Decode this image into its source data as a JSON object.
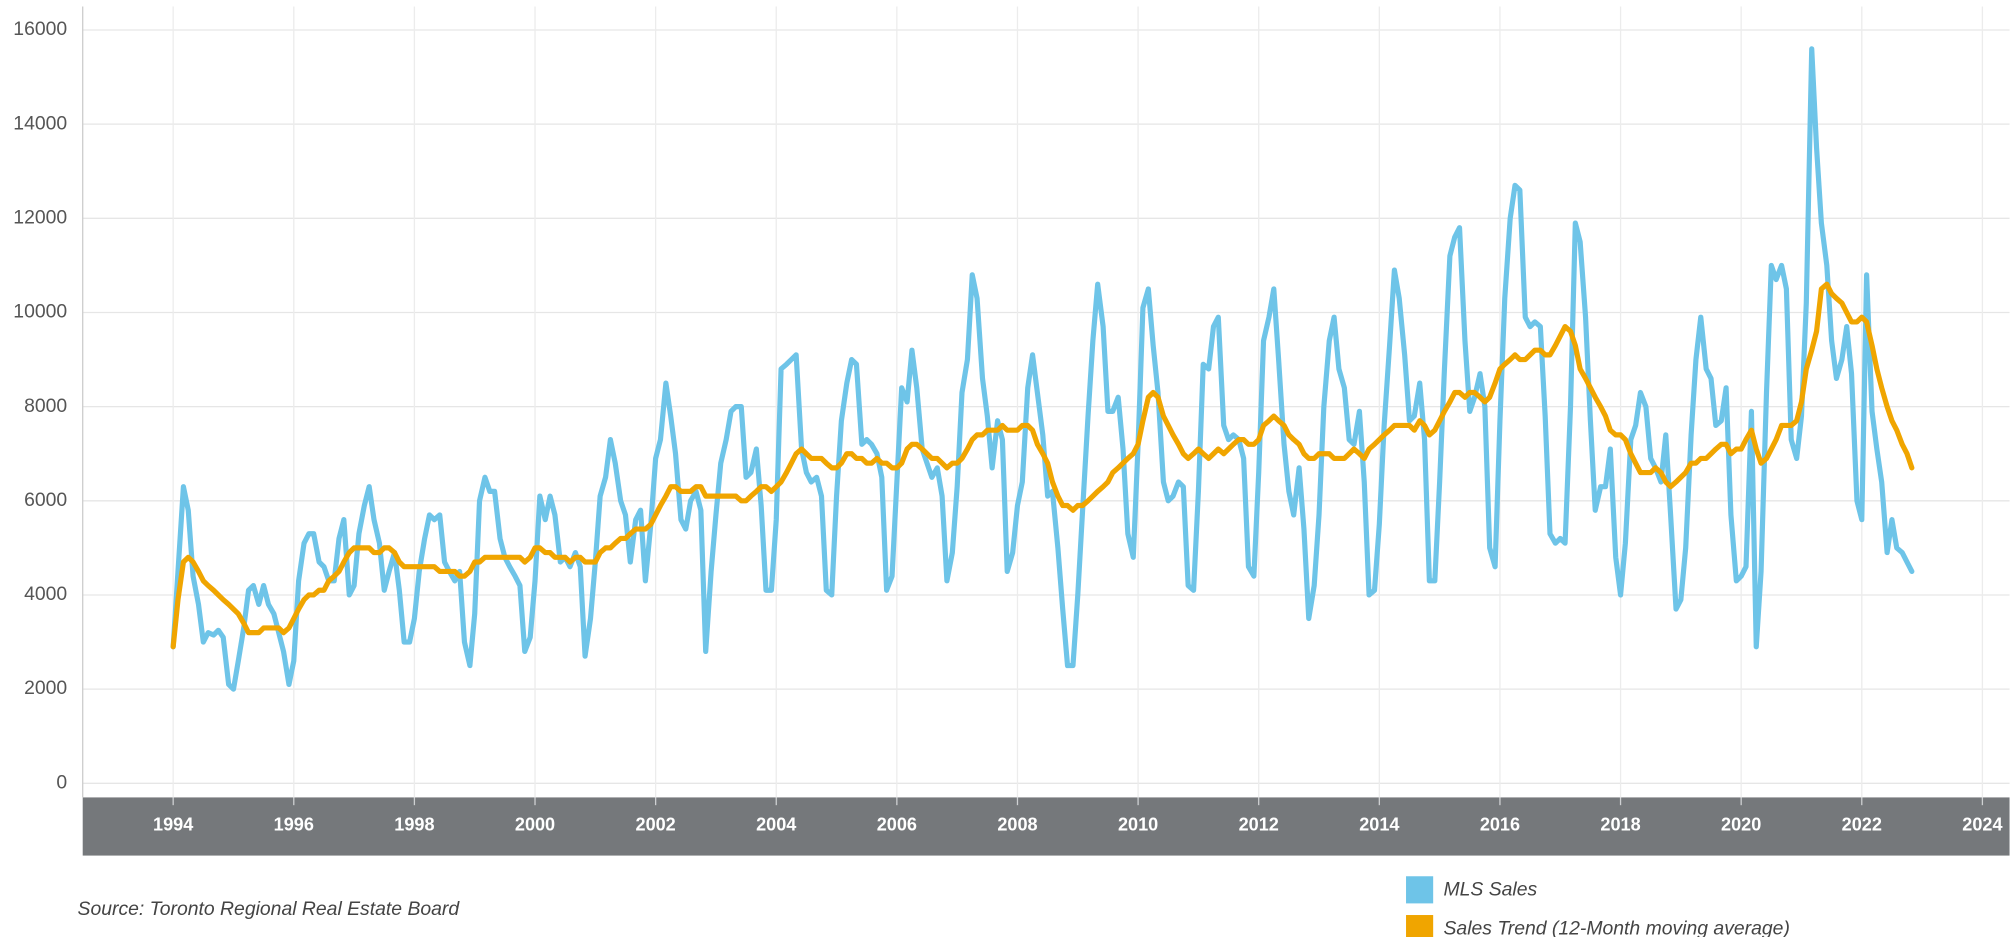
{
  "chart_data": {
    "type": "line",
    "source": "Source: Toronto Regional Real Estate Board",
    "grid": true,
    "xlim": [
      1992.5,
      2024.45
    ],
    "xticks": [
      1994,
      1996,
      1998,
      2000,
      2002,
      2004,
      2006,
      2008,
      2010,
      2012,
      2014,
      2016,
      2018,
      2020,
      2022,
      2024
    ],
    "ylim": [
      -300,
      16500
    ],
    "yticks": [
      0,
      2000,
      4000,
      6000,
      8000,
      10000,
      12000,
      14000,
      16000
    ],
    "x": [
      1994.0,
      1994.08,
      1994.17,
      1994.25,
      1994.33,
      1994.42,
      1994.5,
      1994.58,
      1994.67,
      1994.75,
      1994.83,
      1994.92,
      1995.0,
      1995.08,
      1995.17,
      1995.25,
      1995.33,
      1995.42,
      1995.5,
      1995.58,
      1995.67,
      1995.75,
      1995.83,
      1995.92,
      1996.0,
      1996.08,
      1996.17,
      1996.25,
      1996.33,
      1996.42,
      1996.5,
      1996.58,
      1996.67,
      1996.75,
      1996.83,
      1996.92,
      1997.0,
      1997.08,
      1997.17,
      1997.25,
      1997.33,
      1997.42,
      1997.5,
      1997.58,
      1997.67,
      1997.75,
      1997.83,
      1997.92,
      1998.0,
      1998.08,
      1998.17,
      1998.25,
      1998.33,
      1998.42,
      1998.5,
      1998.58,
      1998.67,
      1998.75,
      1998.83,
      1998.92,
      1999.0,
      1999.08,
      1999.17,
      1999.25,
      1999.33,
      1999.42,
      1999.5,
      1999.58,
      1999.67,
      1999.75,
      1999.83,
      1999.92,
      2000.0,
      2000.08,
      2000.17,
      2000.25,
      2000.33,
      2000.42,
      2000.5,
      2000.58,
      2000.67,
      2000.75,
      2000.83,
      2000.92,
      2001.0,
      2001.08,
      2001.17,
      2001.25,
      2001.33,
      2001.42,
      2001.5,
      2001.58,
      2001.67,
      2001.75,
      2001.83,
      2001.92,
      2002.0,
      2002.08,
      2002.17,
      2002.25,
      2002.33,
      2002.42,
      2002.5,
      2002.58,
      2002.67,
      2002.75,
      2002.83,
      2002.92,
      2003.0,
      2003.08,
      2003.17,
      2003.25,
      2003.33,
      2003.42,
      2003.5,
      2003.58,
      2003.67,
      2003.75,
      2003.83,
      2003.92,
      2004.0,
      2004.08,
      2004.17,
      2004.25,
      2004.33,
      2004.42,
      2004.5,
      2004.58,
      2004.67,
      2004.75,
      2004.83,
      2004.92,
      2005.0,
      2005.08,
      2005.17,
      2005.25,
      2005.33,
      2005.42,
      2005.5,
      2005.58,
      2005.67,
      2005.75,
      2005.83,
      2005.92,
      2006.0,
      2006.08,
      2006.17,
      2006.25,
      2006.33,
      2006.42,
      2006.5,
      2006.58,
      2006.67,
      2006.75,
      2006.83,
      2006.92,
      2007.0,
      2007.08,
      2007.17,
      2007.25,
      2007.33,
      2007.42,
      2007.5,
      2007.58,
      2007.67,
      2007.75,
      2007.83,
      2007.92,
      2008.0,
      2008.08,
      2008.17,
      2008.25,
      2008.33,
      2008.42,
      2008.5,
      2008.58,
      2008.67,
      2008.75,
      2008.83,
      2008.92,
      2009.0,
      2009.08,
      2009.17,
      2009.25,
      2009.33,
      2009.42,
      2009.5,
      2009.58,
      2009.67,
      2009.75,
      2009.83,
      2009.92,
      2010.0,
      2010.08,
      2010.17,
      2010.25,
      2010.33,
      2010.42,
      2010.5,
      2010.58,
      2010.67,
      2010.75,
      2010.83,
      2010.92,
      2011.0,
      2011.08,
      2011.17,
      2011.25,
      2011.33,
      2011.42,
      2011.5,
      2011.58,
      2011.67,
      2011.75,
      2011.83,
      2011.92,
      2012.0,
      2012.08,
      2012.17,
      2012.25,
      2012.33,
      2012.42,
      2012.5,
      2012.58,
      2012.67,
      2012.75,
      2012.83,
      2012.92,
      2013.0,
      2013.08,
      2013.17,
      2013.25,
      2013.33,
      2013.42,
      2013.5,
      2013.58,
      2013.67,
      2013.75,
      2013.83,
      2013.92,
      2014.0,
      2014.08,
      2014.17,
      2014.25,
      2014.33,
      2014.42,
      2014.5,
      2014.58,
      2014.67,
      2014.75,
      2014.83,
      2014.92,
      2015.0,
      2015.08,
      2015.17,
      2015.25,
      2015.33,
      2015.42,
      2015.5,
      2015.58,
      2015.67,
      2015.75,
      2015.83,
      2015.92,
      2016.0,
      2016.08,
      2016.17,
      2016.25,
      2016.33,
      2016.42,
      2016.5,
      2016.58,
      2016.67,
      2016.75,
      2016.83,
      2016.92,
      2017.0,
      2017.08,
      2017.17,
      2017.25,
      2017.33,
      2017.42,
      2017.5,
      2017.58,
      2017.67,
      2017.75,
      2017.83,
      2017.92,
      2018.0,
      2018.08,
      2018.17,
      2018.25,
      2018.33,
      2018.42,
      2018.5,
      2018.58,
      2018.67,
      2018.75,
      2018.83,
      2018.92,
      2019.0,
      2019.08,
      2019.17,
      2019.25,
      2019.33,
      2019.42,
      2019.5,
      2019.58,
      2019.67,
      2019.75,
      2019.83,
      2019.92,
      2020.0,
      2020.08,
      2020.17,
      2020.25,
      2020.33,
      2020.42,
      2020.5,
      2020.58,
      2020.67,
      2020.75,
      2020.83,
      2020.92,
      2021.0,
      2021.08,
      2021.17,
      2021.25,
      2021.33,
      2021.42,
      2021.5,
      2021.58,
      2021.67,
      2021.75,
      2021.83,
      2021.92,
      2022.0,
      2022.08,
      2022.17,
      2022.25,
      2022.33,
      2022.42,
      2022.5,
      2022.58,
      2022.67,
      2022.75,
      2022.83
    ],
    "series": [
      {
        "name": "MLS Sales",
        "color": "#6ec4e8",
        "values": [
          2900,
          4500,
          6300,
          5800,
          4400,
          3800,
          3000,
          3200,
          3150,
          3250,
          3100,
          2100,
          2000,
          2600,
          3300,
          4100,
          4200,
          3800,
          4200,
          3800,
          3600,
          3200,
          2800,
          2100,
          2600,
          4300,
          5100,
          5300,
          5300,
          4700,
          4600,
          4300,
          4300,
          5200,
          5600,
          4000,
          4200,
          5300,
          5900,
          6300,
          5600,
          5100,
          4100,
          4500,
          4900,
          4100,
          3000,
          3000,
          3500,
          4500,
          5200,
          5700,
          5600,
          5700,
          4700,
          4500,
          4300,
          4500,
          3000,
          2500,
          3600,
          6000,
          6500,
          6200,
          6200,
          5200,
          4800,
          4600,
          4400,
          4200,
          2800,
          3100,
          4300,
          6100,
          5600,
          6100,
          5700,
          4700,
          4800,
          4600,
          4900,
          4600,
          2700,
          3500,
          4700,
          6100,
          6500,
          7300,
          6800,
          6000,
          5700,
          4700,
          5600,
          5800,
          4300,
          5500,
          6900,
          7300,
          8500,
          7800,
          7000,
          5600,
          5400,
          6000,
          6200,
          5800,
          2800,
          4500,
          5700,
          6800,
          7300,
          7900,
          8000,
          8000,
          6500,
          6600,
          7100,
          5900,
          4100,
          4100,
          5600,
          8800,
          8900,
          9000,
          9100,
          7100,
          6600,
          6400,
          6500,
          6100,
          4100,
          4000,
          6100,
          7700,
          8500,
          9000,
          8900,
          7200,
          7300,
          7200,
          7000,
          6500,
          4100,
          4400,
          6400,
          8400,
          8100,
          9200,
          8400,
          7100,
          6800,
          6500,
          6700,
          6100,
          4300,
          4900,
          6300,
          8300,
          9000,
          10800,
          10300,
          8600,
          7800,
          6700,
          7700,
          7300,
          4500,
          4900,
          5900,
          6400,
          8400,
          9100,
          8300,
          7400,
          6100,
          6200,
          5000,
          3700,
          2500,
          2500,
          4000,
          5800,
          7800,
          9400,
          10600,
          9700,
          7900,
          7900,
          8200,
          7100,
          5300,
          4800,
          7200,
          10100,
          10500,
          9300,
          8300,
          6400,
          6000,
          6100,
          6400,
          6300,
          4200,
          4100,
          6200,
          8900,
          8800,
          9700,
          9900,
          7600,
          7300,
          7400,
          7300,
          6900,
          4600,
          4400,
          6600,
          9400,
          9900,
          10500,
          9000,
          7200,
          6200,
          5700,
          6700,
          5400,
          3500,
          4200,
          5700,
          8000,
          9400,
          9900,
          8800,
          8400,
          7300,
          7200,
          7900,
          6400,
          4000,
          4100,
          5500,
          7600,
          9300,
          10900,
          10300,
          9100,
          7700,
          7800,
          8500,
          7300,
          4300,
          4300,
          6400,
          8800,
          11200,
          11600,
          11800,
          9400,
          7900,
          8200,
          8700,
          8000,
          5000,
          4600,
          7700,
          10300,
          12000,
          12700,
          12600,
          9900,
          9700,
          9800,
          9700,
          7800,
          5300,
          5100,
          5200,
          5100,
          8000,
          11900,
          11500,
          9900,
          7700,
          5800,
          6300,
          6300,
          7100,
          4800,
          4000,
          5100,
          7300,
          7600,
          8300,
          8000,
          6900,
          6700,
          6400,
          7400,
          5700,
          3700,
          3900,
          5000,
          7400,
          9000,
          9900,
          8800,
          8600,
          7600,
          7700,
          8400,
          5700,
          4300,
          4400,
          4600,
          7900,
          2900,
          4500,
          8300,
          11000,
          10700,
          11000,
          10500,
          7300,
          6900,
          7800,
          10200,
          15600,
          13500,
          11900,
          11000,
          9400,
          8600,
          9000,
          9700,
          8700,
          6000,
          5600,
          10800,
          7900,
          7100,
          6400,
          4900,
          5600,
          5000,
          4900,
          4700,
          4500
        ]
      },
      {
        "name": "Sales Trend (12-Month moving average)",
        "color": "#f0a500",
        "values": [
          2900,
          3900,
          4700,
          4800,
          4700,
          4500,
          4300,
          4200,
          4100,
          4000,
          3900,
          3800,
          3700,
          3600,
          3400,
          3200,
          3200,
          3200,
          3300,
          3300,
          3300,
          3300,
          3200,
          3300,
          3500,
          3700,
          3900,
          4000,
          4000,
          4100,
          4100,
          4300,
          4400,
          4500,
          4700,
          4900,
          5000,
          5000,
          5000,
          5000,
          4900,
          4900,
          5000,
          5000,
          4900,
          4700,
          4600,
          4600,
          4600,
          4600,
          4600,
          4600,
          4600,
          4500,
          4500,
          4500,
          4500,
          4400,
          4400,
          4500,
          4700,
          4700,
          4800,
          4800,
          4800,
          4800,
          4800,
          4800,
          4800,
          4800,
          4700,
          4800,
          5000,
          5000,
          4900,
          4900,
          4800,
          4800,
          4800,
          4700,
          4800,
          4800,
          4700,
          4700,
          4700,
          4900,
          5000,
          5000,
          5100,
          5200,
          5200,
          5300,
          5400,
          5400,
          5400,
          5500,
          5700,
          5900,
          6100,
          6300,
          6300,
          6200,
          6200,
          6200,
          6300,
          6300,
          6100,
          6100,
          6100,
          6100,
          6100,
          6100,
          6100,
          6000,
          6000,
          6100,
          6200,
          6300,
          6300,
          6200,
          6300,
          6400,
          6600,
          6800,
          7000,
          7100,
          7000,
          6900,
          6900,
          6900,
          6800,
          6700,
          6700,
          6800,
          7000,
          7000,
          6900,
          6900,
          6800,
          6800,
          6900,
          6800,
          6800,
          6700,
          6700,
          6800,
          7100,
          7200,
          7200,
          7100,
          7000,
          6900,
          6900,
          6800,
          6700,
          6800,
          6800,
          6900,
          7100,
          7300,
          7400,
          7400,
          7500,
          7500,
          7500,
          7600,
          7500,
          7500,
          7500,
          7600,
          7600,
          7500,
          7200,
          7000,
          6800,
          6400,
          6100,
          5900,
          5900,
          5800,
          5900,
          5900,
          6000,
          6100,
          6200,
          6300,
          6400,
          6600,
          6700,
          6800,
          6900,
          7000,
          7200,
          7700,
          8200,
          8300,
          8200,
          7800,
          7600,
          7400,
          7200,
          7000,
          6900,
          7000,
          7100,
          7000,
          6900,
          7000,
          7100,
          7000,
          7100,
          7200,
          7300,
          7300,
          7200,
          7200,
          7300,
          7600,
          7700,
          7800,
          7700,
          7600,
          7400,
          7300,
          7200,
          7000,
          6900,
          6900,
          7000,
          7000,
          7000,
          6900,
          6900,
          6900,
          7000,
          7100,
          7000,
          6900,
          7100,
          7200,
          7300,
          7400,
          7500,
          7600,
          7600,
          7600,
          7600,
          7500,
          7700,
          7600,
          7400,
          7500,
          7700,
          7900,
          8100,
          8300,
          8300,
          8200,
          8300,
          8300,
          8200,
          8100,
          8200,
          8500,
          8800,
          8900,
          9000,
          9100,
          9000,
          9000,
          9100,
          9200,
          9200,
          9100,
          9100,
          9300,
          9500,
          9700,
          9600,
          9300,
          8800,
          8600,
          8400,
          8200,
          8000,
          7800,
          7500,
          7400,
          7400,
          7300,
          7000,
          6800,
          6600,
          6600,
          6600,
          6700,
          6600,
          6400,
          6300,
          6400,
          6500,
          6600,
          6800,
          6800,
          6900,
          6900,
          7000,
          7100,
          7200,
          7200,
          7000,
          7100,
          7100,
          7300,
          7500,
          7100,
          6800,
          6900,
          7100,
          7300,
          7600,
          7600,
          7600,
          7700,
          8100,
          8800,
          9200,
          9600,
          10500,
          10600,
          10400,
          10300,
          10200,
          10000,
          9800,
          9800,
          9900,
          9800,
          9300,
          8800,
          8400,
          8000,
          7700,
          7500,
          7200,
          7000,
          6700
        ]
      }
    ]
  }
}
